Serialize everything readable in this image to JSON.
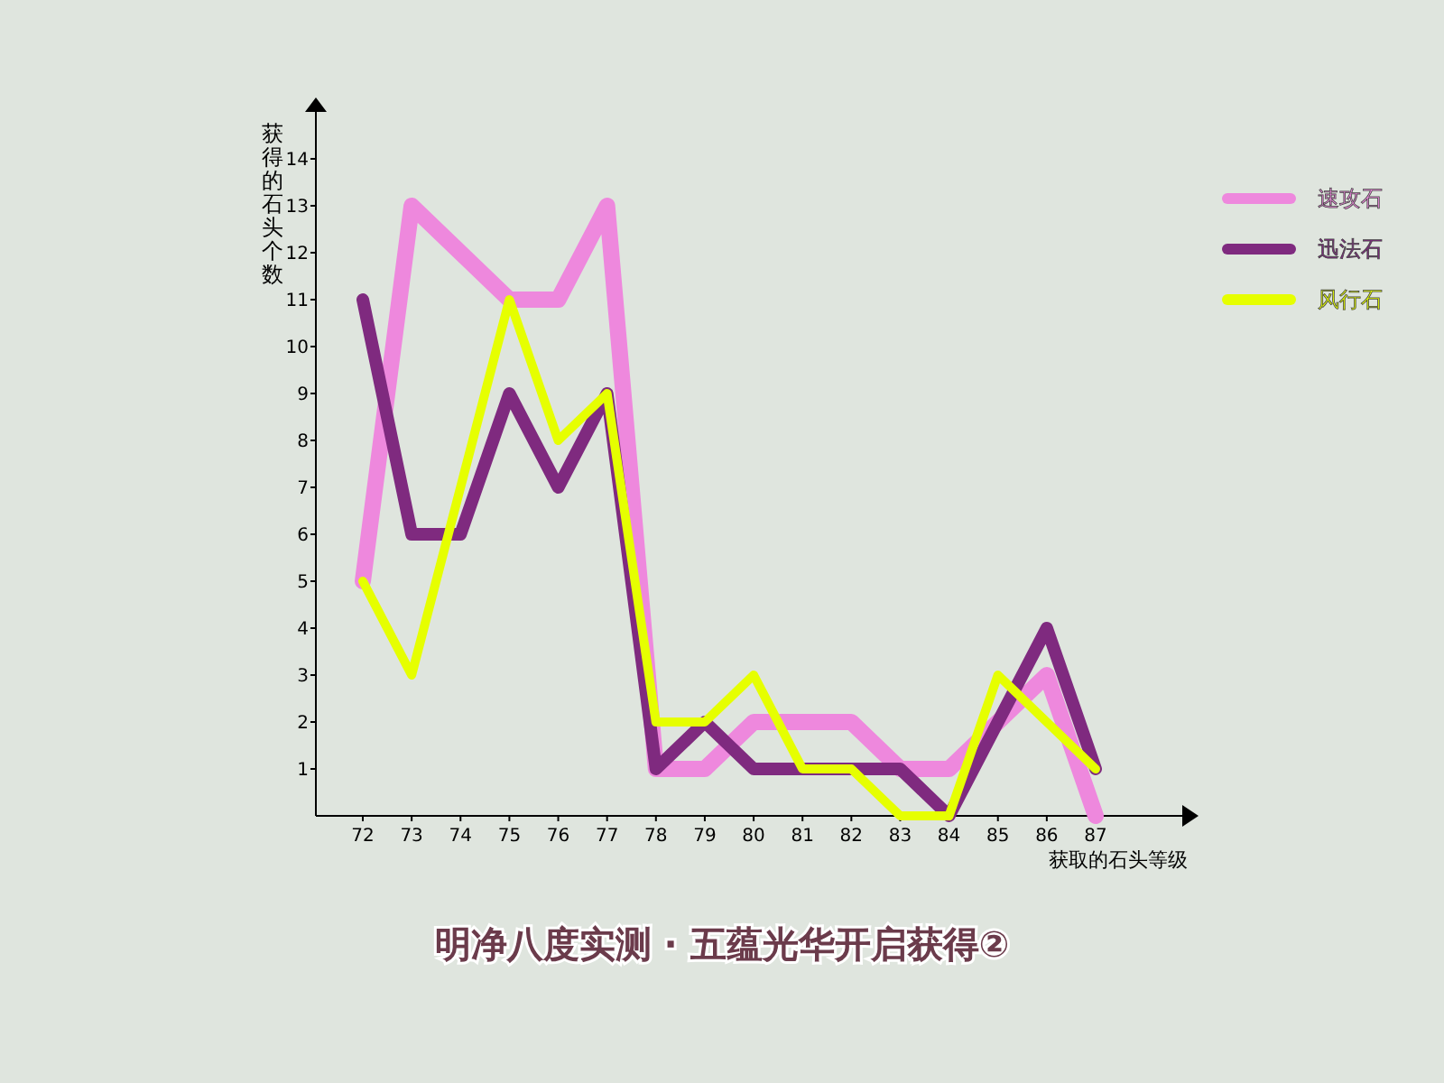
{
  "chart_data": {
    "type": "line",
    "title": "明净八度实测 · 五蕴光华开启获得②",
    "xlabel": "获取的石头等级",
    "ylabel": "获得的石头个数",
    "categories": [
      "72",
      "73",
      "74",
      "75",
      "76",
      "77",
      "78",
      "79",
      "80",
      "81",
      "82",
      "83",
      "84",
      "85",
      "86",
      "87"
    ],
    "ylim": [
      0,
      15
    ],
    "yticks": [
      1,
      2,
      3,
      4,
      5,
      6,
      7,
      8,
      9,
      10,
      11,
      12,
      13,
      14
    ],
    "grid": false,
    "legend": "top right",
    "marker": "none",
    "line_style": "solid",
    "series": [
      {
        "name": "速攻石",
        "color": "#ee88dd",
        "values": [
          5,
          13,
          12,
          11,
          11,
          13,
          1,
          1,
          2,
          2,
          2,
          1,
          1,
          2,
          3,
          0
        ]
      },
      {
        "name": "迅法石",
        "color": "#7f2a7f",
        "values": [
          11,
          6,
          6,
          9,
          7,
          9,
          1,
          2,
          1,
          1,
          1,
          1,
          0,
          2,
          4,
          1
        ]
      },
      {
        "name": "风行石",
        "color": "#e6ff00",
        "values": [
          5,
          3,
          7,
          11,
          8,
          9,
          2,
          2,
          3,
          1,
          1,
          0,
          0,
          3,
          2,
          1
        ]
      }
    ]
  }
}
